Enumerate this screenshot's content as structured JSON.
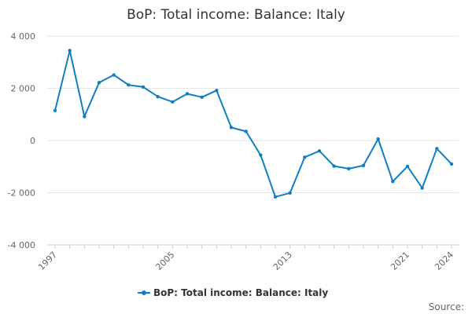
{
  "chart_data": {
    "type": "line",
    "title": "BoP: Total income: Balance: Italy",
    "x": [
      1997,
      1998,
      1999,
      2000,
      2001,
      2002,
      2003,
      2004,
      2005,
      2006,
      2007,
      2008,
      2009,
      2010,
      2011,
      2012,
      2013,
      2014,
      2015,
      2016,
      2017,
      2018,
      2019,
      2020,
      2021,
      2022,
      2023,
      2024
    ],
    "series": [
      {
        "name": "BoP: Total income: Balance: Italy",
        "color": "#0f7fc2",
        "values": [
          1150,
          3450,
          920,
          2220,
          2510,
          2130,
          2050,
          1680,
          1480,
          1790,
          1660,
          1920,
          500,
          350,
          -560,
          -2160,
          -2010,
          -640,
          -400,
          -980,
          -1080,
          -960,
          60,
          -1570,
          -990,
          -1820,
          -310,
          -900
        ]
      }
    ],
    "ylim": [
      -4000,
      4000
    ],
    "yticks": [
      -4000,
      -2000,
      0,
      2000,
      4000
    ],
    "ytick_labels": [
      "-4 000",
      "-2 000",
      "0",
      "2 000",
      "4 000"
    ],
    "xticks": [
      1997,
      2005,
      2013,
      2021,
      2024
    ],
    "xtick_labels": [
      "1997",
      "2005",
      "2013",
      "2021",
      "2024"
    ],
    "grid": true,
    "legend_position": "bottom"
  },
  "footer": {
    "source_label": "Source:"
  }
}
